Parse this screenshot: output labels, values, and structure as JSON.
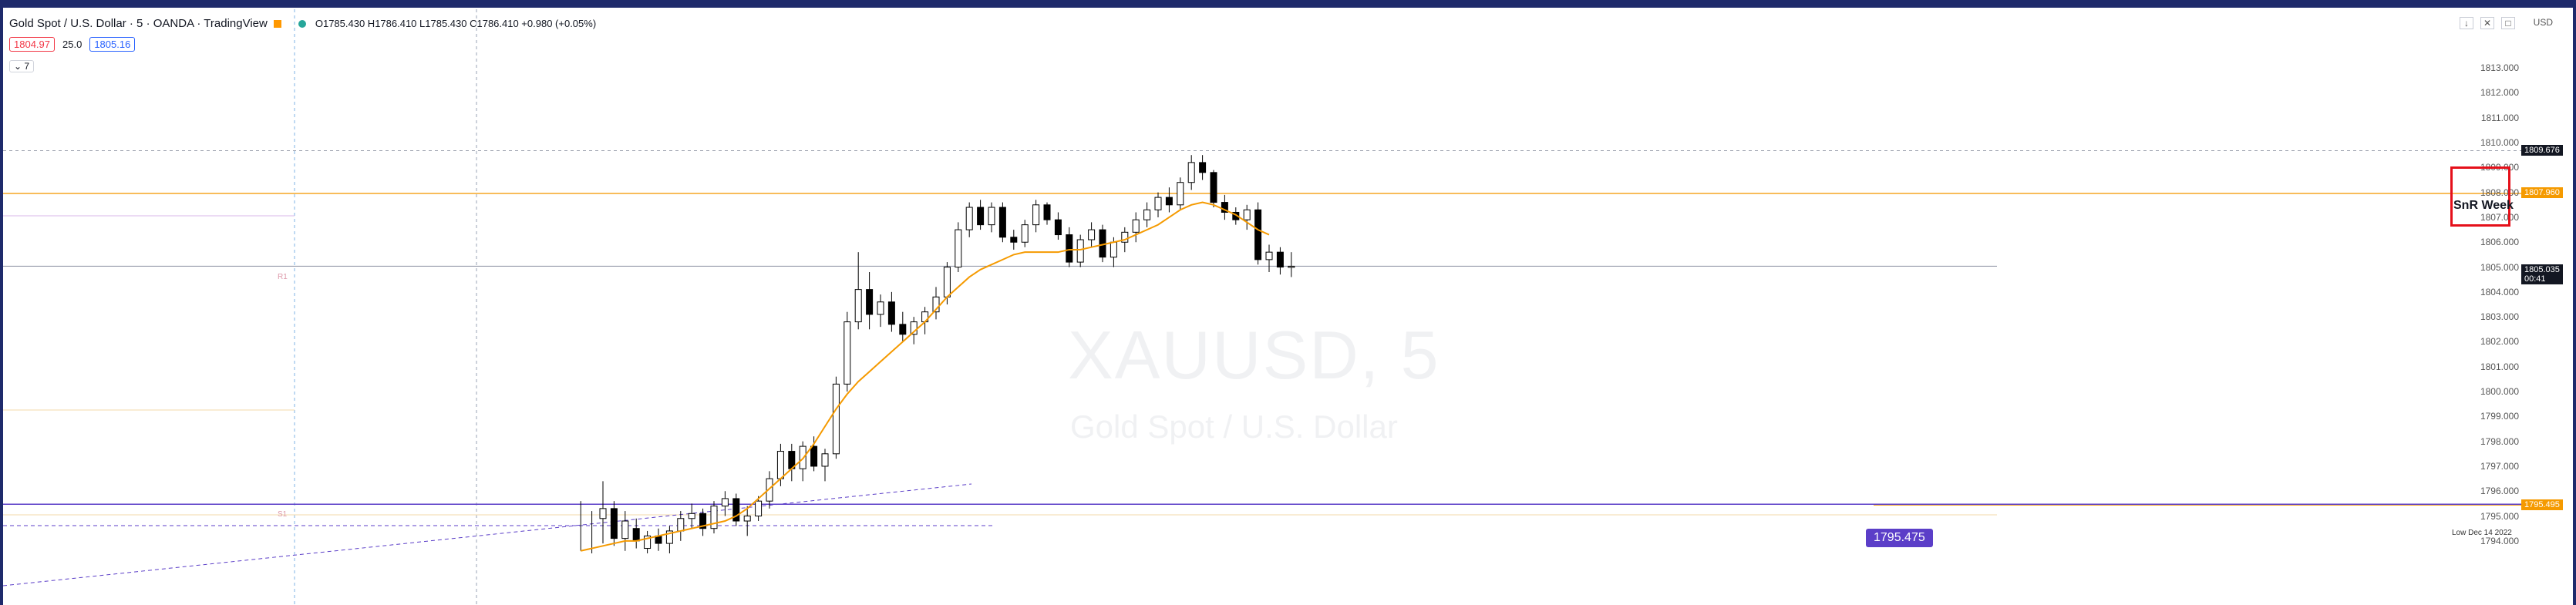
{
  "symbol": {
    "title": "Gold Spot / U.S. Dollar · 5 · OANDA · TradingView",
    "ohlc": "O1785.430 H1786.410 L1785.430 C1786.410 +0.980 (+0.05%)"
  },
  "quote": {
    "bid": "1804.97",
    "spread": "25.0",
    "ask": "1805.16"
  },
  "collapse_label": "7",
  "watermark": {
    "ticker": "XAUUSD, 5",
    "name": "Gold Spot / U.S. Dollar"
  },
  "price_scale": [
    "1813.000",
    "1812.000",
    "1811.000",
    "1810.000",
    "1809.000",
    "1808.000",
    "1807.000",
    "1806.000",
    "1805.000",
    "1804.000",
    "1803.000",
    "1802.000",
    "1801.000",
    "1800.000",
    "1799.000",
    "1798.000",
    "1797.000",
    "1796.000",
    "1795.000",
    "1794.000"
  ],
  "price_scale_top": "USD",
  "tags": {
    "crosshair": "1809.676",
    "orange_line": "1807.960",
    "current": "1805.035",
    "countdown": "00:41",
    "low_line": "1795.495"
  },
  "annotations": {
    "snr": "SnR Week",
    "purple_level": "1795.475",
    "low_label": "Low Dec 14 2022",
    "fib_a": "R1",
    "fib_b": "S1"
  },
  "colors": {
    "up": "#ffffff",
    "down": "#000000",
    "ma": "#f59a00",
    "orange_level": "#f5a623",
    "purple": "#5b3ec8",
    "frame": "#1e2a6b"
  },
  "chart_data": {
    "type": "candlestick",
    "interval": "5",
    "ylim": [
      1793.5,
      1813.5
    ],
    "candles": [
      {
        "o": 1794.9,
        "h": 1796.4,
        "l": 1793.9,
        "c": 1795.3
      },
      {
        "o": 1795.3,
        "h": 1795.6,
        "l": 1793.8,
        "c": 1794.1
      },
      {
        "o": 1794.1,
        "h": 1795.2,
        "l": 1793.6,
        "c": 1794.8
      },
      {
        "o": 1794.5,
        "h": 1794.9,
        "l": 1793.7,
        "c": 1794.0
      },
      {
        "o": 1793.7,
        "h": 1794.4,
        "l": 1793.5,
        "c": 1794.2
      },
      {
        "o": 1794.2,
        "h": 1794.5,
        "l": 1793.6,
        "c": 1793.9
      },
      {
        "o": 1793.9,
        "h": 1794.6,
        "l": 1793.5,
        "c": 1794.4
      },
      {
        "o": 1794.4,
        "h": 1795.2,
        "l": 1794.0,
        "c": 1794.9
      },
      {
        "o": 1794.9,
        "h": 1795.5,
        "l": 1794.5,
        "c": 1795.1
      },
      {
        "o": 1795.1,
        "h": 1795.3,
        "l": 1794.2,
        "c": 1794.5
      },
      {
        "o": 1794.5,
        "h": 1795.6,
        "l": 1794.3,
        "c": 1795.4
      },
      {
        "o": 1795.4,
        "h": 1796.0,
        "l": 1795.0,
        "c": 1795.7
      },
      {
        "o": 1795.7,
        "h": 1795.9,
        "l": 1794.6,
        "c": 1794.8
      },
      {
        "o": 1794.8,
        "h": 1795.4,
        "l": 1794.2,
        "c": 1795.0
      },
      {
        "o": 1795.0,
        "h": 1795.8,
        "l": 1794.8,
        "c": 1795.6
      },
      {
        "o": 1795.6,
        "h": 1796.8,
        "l": 1795.3,
        "c": 1796.5
      },
      {
        "o": 1796.5,
        "h": 1797.9,
        "l": 1796.2,
        "c": 1797.6
      },
      {
        "o": 1797.6,
        "h": 1797.9,
        "l": 1796.4,
        "c": 1796.9
      },
      {
        "o": 1796.9,
        "h": 1798.0,
        "l": 1796.4,
        "c": 1797.8
      },
      {
        "o": 1797.8,
        "h": 1798.2,
        "l": 1796.8,
        "c": 1797.0
      },
      {
        "o": 1797.0,
        "h": 1797.7,
        "l": 1796.4,
        "c": 1797.5
      },
      {
        "o": 1797.5,
        "h": 1800.6,
        "l": 1797.3,
        "c": 1800.3
      },
      {
        "o": 1800.3,
        "h": 1803.2,
        "l": 1800.0,
        "c": 1802.8
      },
      {
        "o": 1802.8,
        "h": 1805.6,
        "l": 1802.5,
        "c": 1804.1
      },
      {
        "o": 1804.1,
        "h": 1804.8,
        "l": 1802.5,
        "c": 1803.1
      },
      {
        "o": 1803.1,
        "h": 1803.9,
        "l": 1802.6,
        "c": 1803.6
      },
      {
        "o": 1803.6,
        "h": 1804.0,
        "l": 1802.4,
        "c": 1802.7
      },
      {
        "o": 1802.7,
        "h": 1803.2,
        "l": 1802.0,
        "c": 1802.3
      },
      {
        "o": 1802.3,
        "h": 1803.0,
        "l": 1801.9,
        "c": 1802.8
      },
      {
        "o": 1802.8,
        "h": 1803.4,
        "l": 1802.3,
        "c": 1803.2
      },
      {
        "o": 1803.2,
        "h": 1804.2,
        "l": 1802.9,
        "c": 1803.8
      },
      {
        "o": 1803.8,
        "h": 1805.2,
        "l": 1803.5,
        "c": 1805.0
      },
      {
        "o": 1805.0,
        "h": 1806.8,
        "l": 1804.8,
        "c": 1806.5
      },
      {
        "o": 1806.5,
        "h": 1807.6,
        "l": 1806.2,
        "c": 1807.4
      },
      {
        "o": 1807.4,
        "h": 1807.7,
        "l": 1806.5,
        "c": 1806.7
      },
      {
        "o": 1806.7,
        "h": 1807.6,
        "l": 1806.4,
        "c": 1807.4
      },
      {
        "o": 1807.4,
        "h": 1807.6,
        "l": 1806.0,
        "c": 1806.2
      },
      {
        "o": 1806.2,
        "h": 1806.5,
        "l": 1805.7,
        "c": 1806.0
      },
      {
        "o": 1806.0,
        "h": 1806.9,
        "l": 1805.8,
        "c": 1806.7
      },
      {
        "o": 1806.7,
        "h": 1807.7,
        "l": 1806.4,
        "c": 1807.5
      },
      {
        "o": 1807.5,
        "h": 1807.6,
        "l": 1806.7,
        "c": 1806.9
      },
      {
        "o": 1806.9,
        "h": 1807.2,
        "l": 1806.1,
        "c": 1806.3
      },
      {
        "o": 1806.3,
        "h": 1806.6,
        "l": 1805.0,
        "c": 1805.2
      },
      {
        "o": 1805.2,
        "h": 1806.3,
        "l": 1805.0,
        "c": 1806.1
      },
      {
        "o": 1806.1,
        "h": 1806.8,
        "l": 1805.8,
        "c": 1806.5
      },
      {
        "o": 1806.5,
        "h": 1806.7,
        "l": 1805.2,
        "c": 1805.4
      },
      {
        "o": 1805.4,
        "h": 1806.2,
        "l": 1805.0,
        "c": 1806.0
      },
      {
        "o": 1806.0,
        "h": 1806.6,
        "l": 1805.6,
        "c": 1806.4
      },
      {
        "o": 1806.4,
        "h": 1807.2,
        "l": 1806.0,
        "c": 1806.9
      },
      {
        "o": 1806.9,
        "h": 1807.6,
        "l": 1806.6,
        "c": 1807.3
      },
      {
        "o": 1807.3,
        "h": 1808.0,
        "l": 1807.0,
        "c": 1807.8
      },
      {
        "o": 1807.8,
        "h": 1808.2,
        "l": 1807.2,
        "c": 1807.5
      },
      {
        "o": 1807.5,
        "h": 1808.6,
        "l": 1807.3,
        "c": 1808.4
      },
      {
        "o": 1808.4,
        "h": 1809.5,
        "l": 1808.1,
        "c": 1809.2
      },
      {
        "o": 1809.2,
        "h": 1809.5,
        "l": 1808.5,
        "c": 1808.8
      },
      {
        "o": 1808.8,
        "h": 1808.9,
        "l": 1807.4,
        "c": 1807.6
      },
      {
        "o": 1807.6,
        "h": 1807.9,
        "l": 1806.9,
        "c": 1807.2
      },
      {
        "o": 1807.2,
        "h": 1807.4,
        "l": 1806.7,
        "c": 1806.9
      },
      {
        "o": 1806.9,
        "h": 1807.5,
        "l": 1806.5,
        "c": 1807.3
      },
      {
        "o": 1807.3,
        "h": 1807.6,
        "l": 1805.1,
        "c": 1805.3
      },
      {
        "o": 1805.3,
        "h": 1805.9,
        "l": 1804.8,
        "c": 1805.6
      },
      {
        "o": 1805.6,
        "h": 1805.8,
        "l": 1804.7,
        "c": 1805.0
      },
      {
        "o": 1805.0,
        "h": 1805.6,
        "l": 1804.6,
        "c": 1805.035
      }
    ],
    "ma": [
      1793.6,
      1793.7,
      1793.8,
      1793.9,
      1794.0,
      1794.0,
      1794.1,
      1794.2,
      1794.3,
      1794.4,
      1794.5,
      1794.6,
      1794.7,
      1794.8,
      1795.0,
      1795.3,
      1795.7,
      1796.1,
      1796.5,
      1796.9,
      1797.3,
      1797.9,
      1798.6,
      1799.3,
      1799.9,
      1800.4,
      1800.8,
      1801.2,
      1801.6,
      1802.0,
      1802.4,
      1802.8,
      1803.3,
      1803.8,
      1804.2,
      1804.6,
      1804.9,
      1805.1,
      1805.3,
      1805.5,
      1805.6,
      1805.6,
      1805.6,
      1805.6,
      1805.7,
      1805.7,
      1805.8,
      1805.9,
      1806.0,
      1806.1,
      1806.3,
      1806.5,
      1806.7,
      1807.0,
      1807.3,
      1807.5,
      1807.6,
      1807.5,
      1807.3,
      1807.1,
      1806.8,
      1806.5,
      1806.3
    ],
    "levels": [
      {
        "price": 1809.676,
        "style": "crosshair"
      },
      {
        "price": 1807.96,
        "style": "orange"
      },
      {
        "price": 1805.035,
        "style": "current"
      },
      {
        "price": 1795.475,
        "style": "purple"
      },
      {
        "price": 1795.495,
        "style": "low"
      }
    ]
  }
}
